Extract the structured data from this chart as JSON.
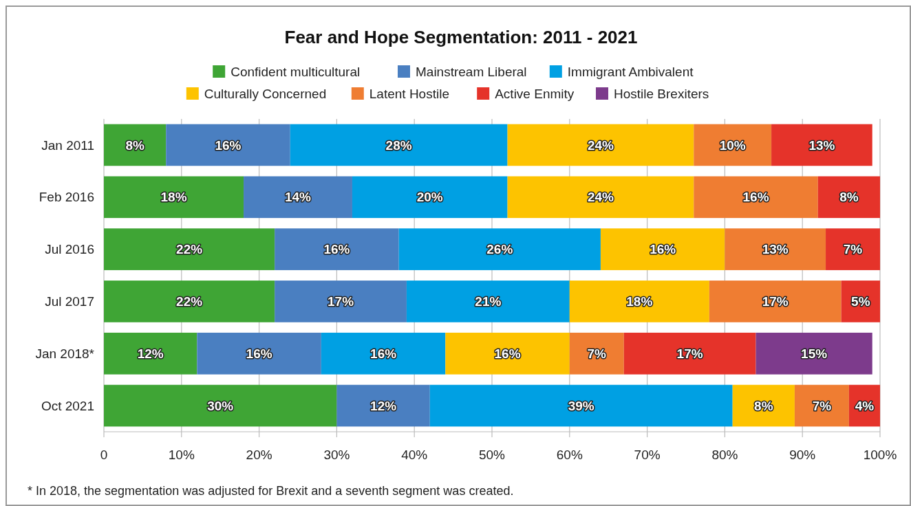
{
  "chart_data": {
    "type": "bar",
    "orientation": "horizontal",
    "stacked": true,
    "title": "Fear and Hope Segmentation: 2011 - 2021",
    "categories": [
      "Jan 2011",
      "Feb 2016",
      "Jul 2016",
      "Jul 2017",
      "Jan 2018*",
      "Oct 2021"
    ],
    "series": [
      {
        "name": "Confident multicultural",
        "color": "#3fa535",
        "values": [
          8,
          18,
          22,
          22,
          12,
          30
        ],
        "value_labels": [
          "8%",
          "18%",
          "22%",
          "22%",
          "12%",
          "30%"
        ]
      },
      {
        "name": "Mainstream Liberal",
        "color": "#4a7fc1",
        "values": [
          16,
          14,
          16,
          17,
          16,
          12
        ],
        "value_labels": [
          "16%",
          "14%",
          "16%",
          "17%",
          "16%",
          "12%"
        ]
      },
      {
        "name": "Immigrant Ambivalent",
        "color": "#00a0e3",
        "values": [
          28,
          20,
          26,
          21,
          16,
          39
        ],
        "value_labels": [
          "28%",
          "20%",
          "26%",
          "21%",
          "16%",
          "39%"
        ]
      },
      {
        "name": "Culturally Concerned",
        "color": "#fdc300",
        "values": [
          24,
          24,
          16,
          18,
          16,
          8
        ],
        "value_labels": [
          "24%",
          "24%",
          "16%",
          "18%",
          "16%",
          "8%"
        ]
      },
      {
        "name": "Latent Hostile",
        "color": "#ef7d32",
        "values": [
          10,
          16,
          13,
          17,
          7,
          7
        ],
        "value_labels": [
          "10%",
          "16%",
          "13%",
          "17%",
          "7%",
          "7%"
        ]
      },
      {
        "name": "Active Enmity",
        "color": "#e5332a",
        "values": [
          13,
          8,
          7,
          5,
          17,
          4
        ],
        "value_labels": [
          "13%",
          "8%",
          "7%",
          "5%",
          "17%",
          "4%"
        ]
      },
      {
        "name": "Hostile Brexiters",
        "color": "#7d3b8c",
        "values": [
          null,
          null,
          null,
          null,
          15,
          null
        ],
        "value_labels": [
          null,
          null,
          null,
          null,
          "15%",
          null
        ]
      }
    ],
    "xlim": [
      0,
      100
    ],
    "xticks": [
      0,
      {
        "value": 10,
        "label": "10%"
      },
      {
        "value": 20,
        "label": "20%"
      },
      {
        "value": 30,
        "label": "30%"
      },
      {
        "value": 40,
        "label": "40%"
      },
      {
        "value": 50,
        "label": "50%"
      },
      {
        "value": 60,
        "label": "60%"
      },
      {
        "value": 70,
        "label": "70%"
      },
      {
        "value": 80,
        "label": "80%"
      },
      {
        "value": 90,
        "label": "90%"
      },
      {
        "value": 100,
        "label": "100%"
      }
    ],
    "grid": "x",
    "legend": "top",
    "annotations": [
      "* In 2018, the segmentation was adjusted for Brexit and a seventh segment was created."
    ]
  }
}
